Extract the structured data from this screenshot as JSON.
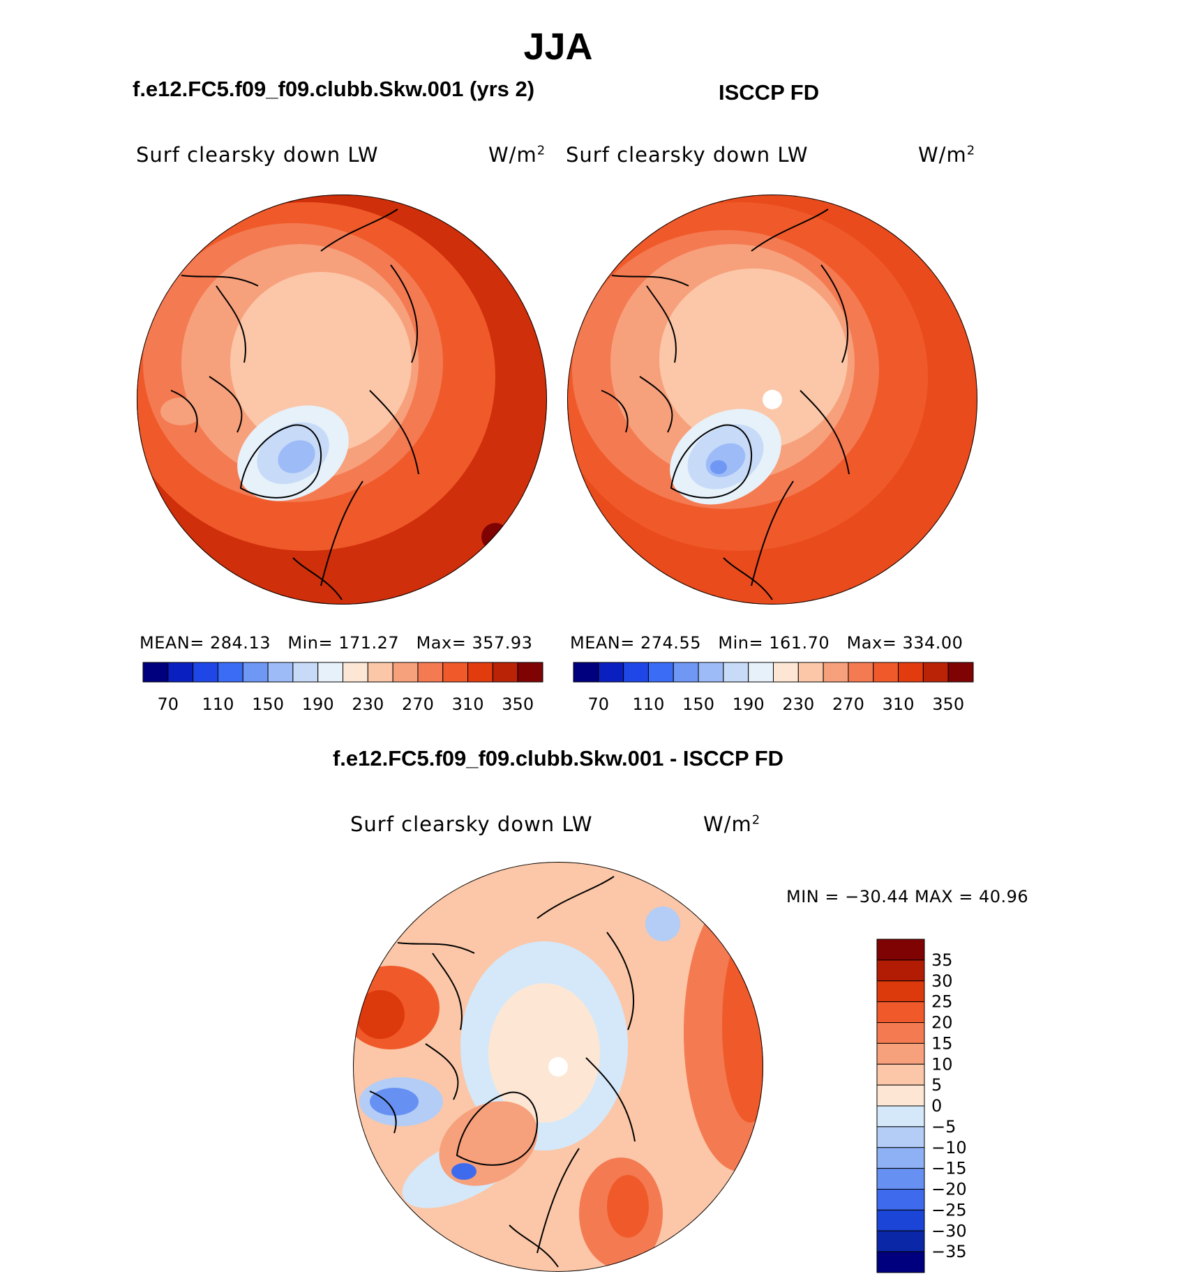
{
  "title": "JJA",
  "panels": [
    {
      "title": "f.e12.FC5.f09_f09.clubb.Skw.001 (yrs 2)",
      "variable": "Surf clearsky down LW",
      "units": "W/m",
      "units_sup": "2",
      "mean_label": "MEAN=",
      "mean": "284.13",
      "min_label": "Min=",
      "min": "171.27",
      "max_label": "Max=",
      "max": "357.93"
    },
    {
      "title": "ISCCP FD",
      "variable": "Surf clearsky down LW",
      "units": "W/m",
      "units_sup": "2",
      "mean_label": "MEAN=",
      "mean": "274.55",
      "min_label": "Min=",
      "min": "161.70",
      "max_label": "Max=",
      "max": "334.00"
    },
    {
      "title": "f.e12.FC5.f09_f09.clubb.Skw.001 - ISCCP FD",
      "variable": "Surf clearsky down LW",
      "units": "W/m",
      "units_sup": "2",
      "minmax_text": "MIN = −30.44 MAX =   40.96"
    }
  ],
  "chart_data": [
    {
      "type": "heatmap",
      "projection": "north polar stereographic",
      "title": "f.e12.FC5.f09_f09.clubb.Skw.001 (yrs 2)",
      "variable": "Surf clearsky down LW",
      "units": "W/m2",
      "stats": {
        "mean": 284.13,
        "min": 171.27,
        "max": 357.93
      },
      "colorbar": {
        "orientation": "horizontal",
        "tick_labels": [
          "70",
          "110",
          "150",
          "190",
          "230",
          "270",
          "310",
          "350"
        ],
        "colors": [
          "#00007f",
          "#0a1fbf",
          "#1f47e8",
          "#3b6cf5",
          "#6f98f5",
          "#9dbcf7",
          "#c7dbf8",
          "#e6f1fa",
          "#fde7d4",
          "#fbc7a8",
          "#f7a07c",
          "#f47a52",
          "#f05a2a",
          "#e23b0e",
          "#bb2306",
          "#7f0303"
        ]
      }
    },
    {
      "type": "heatmap",
      "projection": "north polar stereographic",
      "title": "ISCCP FD",
      "variable": "Surf clearsky down LW",
      "units": "W/m2",
      "stats": {
        "mean": 274.55,
        "min": 161.7,
        "max": 334.0
      },
      "colorbar": {
        "orientation": "horizontal",
        "tick_labels": [
          "70",
          "110",
          "150",
          "190",
          "230",
          "270",
          "310",
          "350"
        ],
        "colors": [
          "#00007f",
          "#0a1fbf",
          "#1f47e8",
          "#3b6cf5",
          "#6f98f5",
          "#9dbcf7",
          "#c7dbf8",
          "#e6f1fa",
          "#fde7d4",
          "#fbc7a8",
          "#f7a07c",
          "#f47a52",
          "#f05a2a",
          "#e23b0e",
          "#bb2306",
          "#7f0303"
        ]
      }
    },
    {
      "type": "heatmap",
      "projection": "north polar stereographic",
      "title": "f.e12.FC5.f09_f09.clubb.Skw.001 - ISCCP FD",
      "variable": "Surf clearsky down LW",
      "units": "W/m2",
      "stats": {
        "min": -30.44,
        "max": 40.96
      },
      "colorbar": {
        "orientation": "vertical",
        "tick_labels": [
          "35",
          "30",
          "25",
          "20",
          "15",
          "10",
          "5",
          "0",
          "−5",
          "−10",
          "−15",
          "−20",
          "−25",
          "−30",
          "−35"
        ],
        "colors": [
          "#7f0303",
          "#b21c04",
          "#dc3a0c",
          "#f05a2a",
          "#f47a52",
          "#f7a07c",
          "#fbc7a8",
          "#fde7d4",
          "#d4e8fa",
          "#b3cdf7",
          "#8eb1f5",
          "#6690f2",
          "#3e6bed",
          "#1a45d6",
          "#0a27a8",
          "#00007f"
        ]
      }
    }
  ]
}
